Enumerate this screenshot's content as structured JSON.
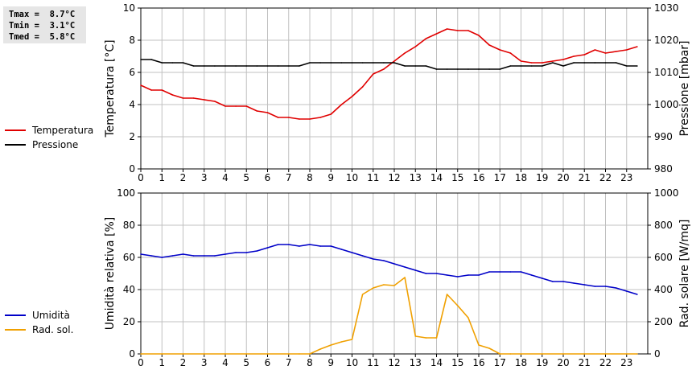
{
  "stats": {
    "tmax": "Tmax =  8.7°C",
    "tmin": "Tmin =  3.1°C",
    "tmed": "Tmed =  5.8°C"
  },
  "colors": {
    "temperature": "#e00000",
    "pressure": "#000000",
    "humidity": "#0000c8",
    "radiation": "#f0a000",
    "grid": "#c0c0c0"
  },
  "chart_data": [
    {
      "type": "line",
      "xlim": [
        0,
        24
      ],
      "xticks": [
        0,
        1,
        2,
        3,
        4,
        5,
        6,
        7,
        8,
        9,
        10,
        11,
        12,
        13,
        14,
        15,
        16,
        17,
        18,
        19,
        20,
        21,
        22,
        23
      ],
      "grid": true,
      "legend_position": "left",
      "ylabel_left": "Temperatura [°C]",
      "ylim_left": [
        0,
        10
      ],
      "yticks_left": [
        0,
        2,
        4,
        6,
        8,
        10
      ],
      "ylabel_right": "Pressione [mbar]",
      "ylim_right": [
        980,
        1030
      ],
      "yticks_right": [
        980,
        990,
        1000,
        1010,
        1020,
        1030
      ],
      "series": [
        {
          "name": "Temperatura",
          "axis": "left",
          "color": "#e00000",
          "x": [
            0,
            0.5,
            1,
            1.5,
            2,
            2.5,
            3,
            3.5,
            4,
            4.5,
            5,
            5.5,
            6,
            6.5,
            7,
            7.5,
            8,
            8.5,
            9,
            9.5,
            10,
            10.5,
            11,
            11.5,
            12,
            12.5,
            13,
            13.5,
            14,
            14.5,
            15,
            15.5,
            16,
            16.5,
            17,
            17.5,
            18,
            18.5,
            19,
            19.5,
            20,
            20.5,
            21,
            21.5,
            22,
            22.5,
            23,
            23.5
          ],
          "values": [
            5.2,
            4.9,
            4.9,
            4.6,
            4.4,
            4.4,
            4.3,
            4.2,
            3.9,
            3.9,
            3.9,
            3.6,
            3.5,
            3.2,
            3.2,
            3.1,
            3.1,
            3.2,
            3.4,
            4.0,
            4.5,
            5.1,
            5.9,
            6.2,
            6.7,
            7.2,
            7.6,
            8.1,
            8.4,
            8.7,
            8.6,
            8.6,
            8.3,
            7.7,
            7.4,
            7.2,
            6.7,
            6.6,
            6.6,
            6.7,
            6.8,
            7.0,
            7.1,
            7.4,
            7.2,
            7.3,
            7.4,
            7.6
          ]
        },
        {
          "name": "Pressione",
          "axis": "right",
          "color": "#000000",
          "x": [
            0,
            0.5,
            1,
            1.5,
            2,
            2.5,
            3,
            3.5,
            4,
            4.5,
            5,
            5.5,
            6,
            6.5,
            7,
            7.5,
            8,
            8.5,
            9,
            9.5,
            10,
            10.5,
            11,
            11.5,
            12,
            12.5,
            13,
            13.5,
            14,
            14.5,
            15,
            15.5,
            16,
            16.5,
            17,
            17.5,
            18,
            18.5,
            19,
            19.5,
            20,
            20.5,
            21,
            21.5,
            22,
            22.5,
            23,
            23.5
          ],
          "values": [
            1014,
            1014,
            1013,
            1013,
            1013,
            1012,
            1012,
            1012,
            1012,
            1012,
            1012,
            1012,
            1012,
            1012,
            1012,
            1012,
            1013,
            1013,
            1013,
            1013,
            1013,
            1013,
            1013,
            1013,
            1013,
            1012,
            1012,
            1012,
            1011,
            1011,
            1011,
            1011,
            1011,
            1011,
            1011,
            1012,
            1012,
            1012,
            1012,
            1013,
            1012,
            1013,
            1013,
            1013,
            1013,
            1013,
            1012,
            1012
          ]
        }
      ]
    },
    {
      "type": "line",
      "xlim": [
        0,
        24
      ],
      "xticks": [
        0,
        1,
        2,
        3,
        4,
        5,
        6,
        7,
        8,
        9,
        10,
        11,
        12,
        13,
        14,
        15,
        16,
        17,
        18,
        19,
        20,
        21,
        22,
        23
      ],
      "grid": true,
      "legend_position": "left",
      "ylabel_left": "Umidità relativa [%]",
      "ylim_left": [
        0,
        100
      ],
      "yticks_left": [
        0,
        20,
        40,
        60,
        80,
        100
      ],
      "ylabel_right": "Rad. solare [W/mq]",
      "ylim_right": [
        0,
        1000
      ],
      "yticks_right": [
        0,
        200,
        400,
        600,
        800,
        1000
      ],
      "series": [
        {
          "name": "Umidità",
          "axis": "left",
          "color": "#0000c8",
          "x": [
            0,
            0.5,
            1,
            1.5,
            2,
            2.5,
            3,
            3.5,
            4,
            4.5,
            5,
            5.5,
            6,
            6.5,
            7,
            7.5,
            8,
            8.5,
            9,
            9.5,
            10,
            10.5,
            11,
            11.5,
            12,
            12.5,
            13,
            13.5,
            14,
            14.5,
            15,
            15.5,
            16,
            16.5,
            17,
            17.5,
            18,
            18.5,
            19,
            19.5,
            20,
            20.5,
            21,
            21.5,
            22,
            22.5,
            23,
            23.5
          ],
          "values": [
            62,
            61,
            60,
            61,
            62,
            61,
            61,
            61,
            62,
            63,
            63,
            64,
            66,
            68,
            68,
            67,
            68,
            67,
            67,
            65,
            63,
            61,
            59,
            58,
            56,
            54,
            52,
            50,
            50,
            49,
            48,
            49,
            49,
            51,
            51,
            51,
            51,
            49,
            47,
            45,
            45,
            44,
            43,
            42,
            42,
            41,
            39,
            37
          ]
        },
        {
          "name": "Rad. sol.",
          "axis": "right",
          "color": "#f0a000",
          "x": [
            0,
            1,
            2,
            3,
            4,
            5,
            6,
            7,
            7.5,
            8,
            8.5,
            9,
            9.5,
            10,
            10.5,
            11,
            11.5,
            12,
            12.5,
            13,
            13.5,
            14,
            14.5,
            15,
            15.5,
            16,
            16.5,
            17,
            17.5,
            18,
            19,
            20,
            21,
            22,
            23,
            23.5
          ],
          "values": [
            0,
            0,
            0,
            0,
            0,
            0,
            0,
            0,
            0,
            0,
            30,
            55,
            75,
            90,
            370,
            410,
            430,
            425,
            475,
            110,
            100,
            100,
            370,
            300,
            225,
            55,
            35,
            0,
            0,
            0,
            0,
            0,
            0,
            0,
            0,
            0
          ]
        }
      ]
    }
  ]
}
